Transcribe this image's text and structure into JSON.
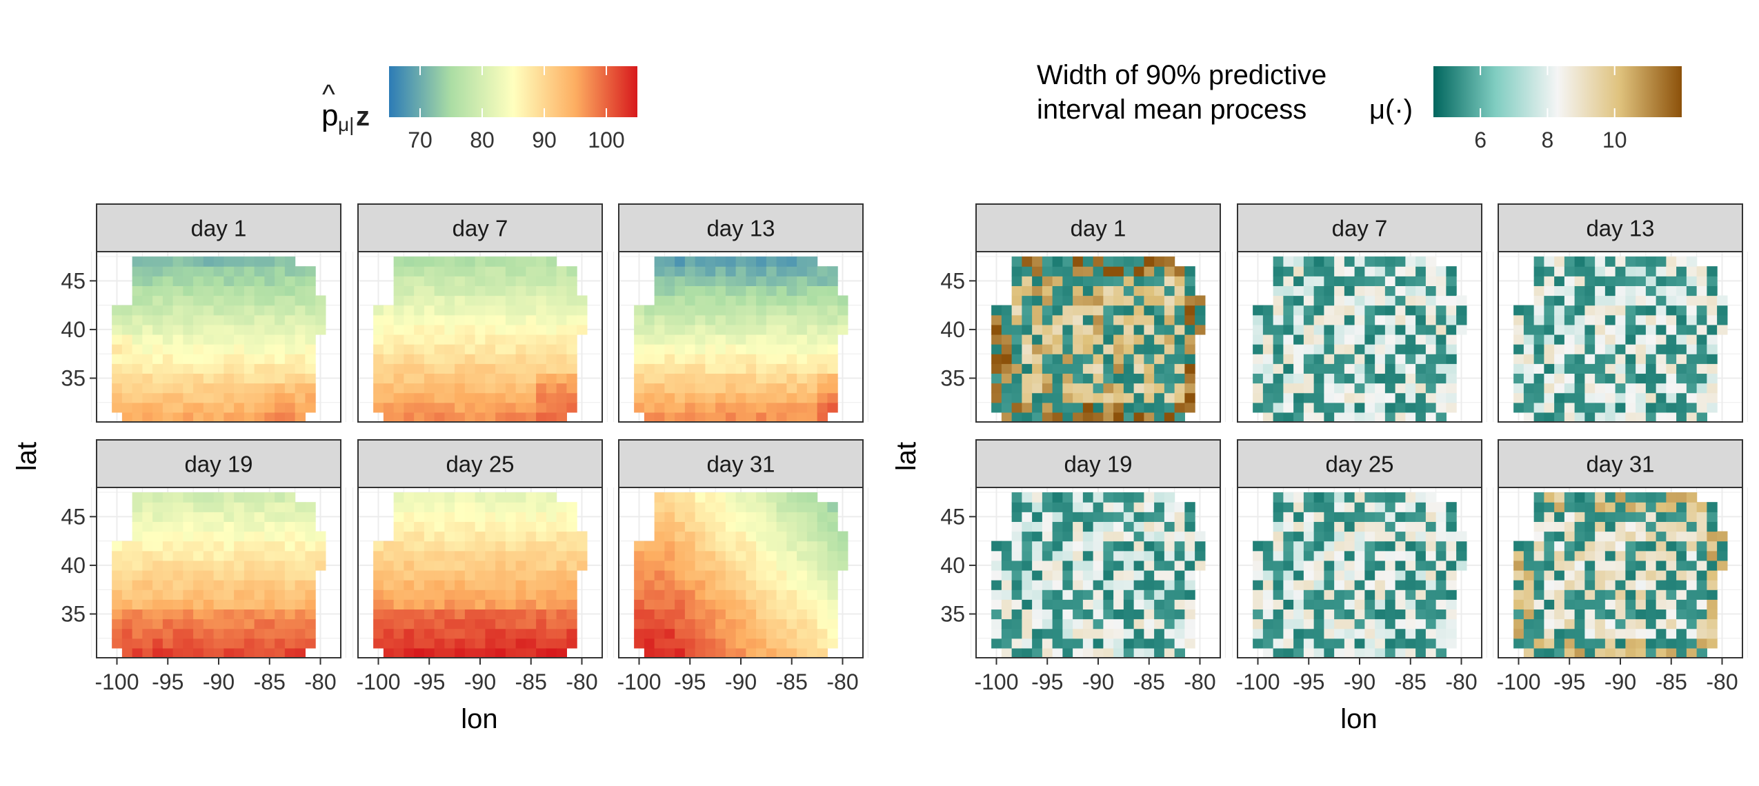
{
  "chart_data": [
    {
      "type": "heatmap",
      "legend": {
        "title_main": "p",
        "title_hat": "^",
        "title_sub": "μ|",
        "title_after": "z",
        "ticks": [
          70,
          80,
          90,
          100
        ],
        "range": [
          65,
          105
        ],
        "palette": [
          "#2c7bb6",
          "#abdda4",
          "#ffffbf",
          "#fdae61",
          "#d7191c"
        ],
        "position": "top"
      },
      "xlabel": "lon",
      "ylabel": "lat",
      "x_ticks": [
        -100,
        -95,
        -90,
        -85,
        -80
      ],
      "y_ticks": [
        35,
        40,
        45
      ],
      "xlim": [
        -102,
        -78
      ],
      "ylim": [
        30.5,
        48
      ],
      "panels": [
        "day 1",
        "day 7",
        "day 13",
        "day 19",
        "day 25",
        "day 31"
      ],
      "value_ranges": {
        "day 1": [
          70,
          95
        ],
        "day 7": [
          75,
          98
        ],
        "day 13": [
          68,
          98
        ],
        "day 19": [
          80,
          100
        ],
        "day 25": [
          80,
          102
        ],
        "day 31": [
          80,
          104
        ]
      }
    },
    {
      "type": "heatmap",
      "legend": {
        "title_line1": "Width of 90% predictive",
        "title_line2": "interval mean process",
        "title_mu": "μ(·)",
        "ticks": [
          6,
          8,
          10
        ],
        "range": [
          4.6,
          12
        ],
        "palette": [
          "#01665e",
          "#80cdc1",
          "#f5f5f5",
          "#dfc27d",
          "#8c510a"
        ],
        "position": "top"
      },
      "xlabel": "lon",
      "ylabel": "lat",
      "x_ticks": [
        -100,
        -95,
        -90,
        -85,
        -80
      ],
      "y_ticks": [
        35,
        40,
        45
      ],
      "xlim": [
        -102,
        -78
      ],
      "ylim": [
        30.5,
        48
      ],
      "panels": [
        "day 1",
        "day 7",
        "day 13",
        "day 19",
        "day 25",
        "day 31"
      ],
      "value_ranges": {
        "day 1": [
          5,
          11.5
        ],
        "day 7": [
          5,
          10
        ],
        "day 13": [
          5,
          10
        ],
        "day 19": [
          5,
          10
        ],
        "day 25": [
          5,
          10
        ],
        "day 31": [
          5,
          11
        ]
      }
    }
  ]
}
